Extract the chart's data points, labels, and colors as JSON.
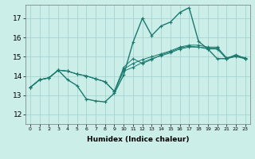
{
  "xlabel": "Humidex (Indice chaleur)",
  "bg_color": "#cceee8",
  "line_color": "#1a7a6e",
  "x_ticks": [
    0,
    1,
    2,
    3,
    4,
    5,
    6,
    7,
    8,
    9,
    10,
    11,
    12,
    13,
    14,
    15,
    16,
    17,
    18,
    19,
    20,
    21,
    22,
    23
  ],
  "y_ticks": [
    12,
    13,
    14,
    15,
    16,
    17
  ],
  "ylim": [
    11.5,
    17.7
  ],
  "xlim": [
    -0.5,
    23.5
  ],
  "series": [
    [
      13.4,
      13.8,
      13.9,
      14.3,
      13.8,
      13.5,
      12.8,
      12.7,
      12.65,
      13.1,
      14.05,
      15.75,
      17.0,
      16.1,
      16.6,
      16.8,
      17.3,
      17.55,
      15.8,
      15.4,
      14.9,
      14.9,
      15.1,
      14.9
    ],
    [
      13.4,
      13.8,
      13.9,
      14.3,
      14.25,
      14.1,
      14.0,
      13.85,
      13.7,
      13.2,
      14.45,
      14.9,
      14.65,
      14.85,
      15.1,
      15.25,
      15.45,
      15.55,
      15.5,
      15.45,
      15.45,
      14.9,
      15.05,
      14.9
    ],
    [
      13.4,
      13.8,
      13.9,
      14.3,
      14.25,
      14.1,
      14.0,
      13.85,
      13.7,
      13.2,
      14.35,
      14.65,
      14.85,
      15.0,
      15.15,
      15.3,
      15.5,
      15.6,
      15.6,
      15.5,
      15.5,
      14.95,
      15.05,
      14.95
    ],
    [
      13.4,
      13.8,
      13.9,
      14.3,
      14.25,
      14.1,
      14.0,
      13.85,
      13.7,
      13.2,
      14.25,
      14.45,
      14.7,
      14.9,
      15.05,
      15.2,
      15.4,
      15.5,
      15.5,
      15.4,
      15.4,
      14.9,
      15.0,
      14.9
    ]
  ]
}
